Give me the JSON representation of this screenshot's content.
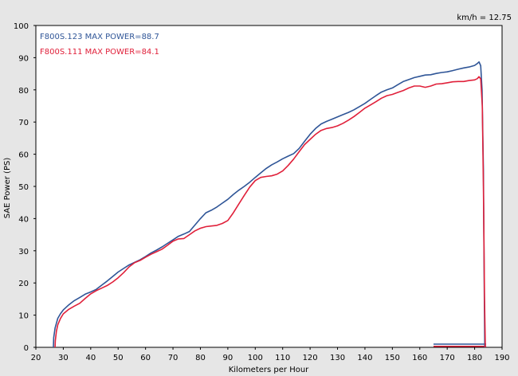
{
  "chart_data": {
    "type": "line",
    "title": "",
    "xlabel": "Kilometers per Hour",
    "ylabel": "SAE Power (PS)",
    "xlim": [
      20,
      190
    ],
    "ylim": [
      0,
      100
    ],
    "x_ticks": [
      20,
      30,
      40,
      50,
      60,
      70,
      80,
      90,
      100,
      110,
      120,
      130,
      140,
      150,
      160,
      170,
      180,
      190
    ],
    "y_ticks": [
      0,
      10,
      20,
      30,
      40,
      50,
      60,
      70,
      80,
      90,
      100
    ],
    "grid": false,
    "legend_position": "top-left",
    "annotation": "km/h = 12.75",
    "series": [
      {
        "name": "F800S.123",
        "label": "F800S.123  MAX POWER=88.7",
        "color": "#2f5597",
        "points": [
          [
            26.4,
            0
          ],
          [
            26.5,
            3
          ],
          [
            27,
            6
          ],
          [
            28,
            9
          ],
          [
            29,
            10.5
          ],
          [
            30,
            11.6
          ],
          [
            32,
            13.2
          ],
          [
            34,
            14.5
          ],
          [
            36,
            15.5
          ],
          [
            38,
            16.5
          ],
          [
            40,
            17.2
          ],
          [
            42,
            18
          ],
          [
            44,
            19.3
          ],
          [
            46,
            20.6
          ],
          [
            48,
            22
          ],
          [
            50,
            23.4
          ],
          [
            52,
            24.5
          ],
          [
            54,
            25.6
          ],
          [
            56,
            26.4
          ],
          [
            58,
            27.2
          ],
          [
            60,
            28.2
          ],
          [
            62,
            29.3
          ],
          [
            64,
            30.2
          ],
          [
            66,
            31.2
          ],
          [
            68,
            32.3
          ],
          [
            70,
            33.4
          ],
          [
            72,
            34.5
          ],
          [
            74,
            35.2
          ],
          [
            76,
            36
          ],
          [
            78,
            38
          ],
          [
            80,
            40
          ],
          [
            82,
            41.8
          ],
          [
            84,
            42.6
          ],
          [
            86,
            43.6
          ],
          [
            88,
            44.8
          ],
          [
            90,
            46
          ],
          [
            92,
            47.5
          ],
          [
            94,
            48.8
          ],
          [
            96,
            50
          ],
          [
            98,
            51.3
          ],
          [
            100,
            52.8
          ],
          [
            102,
            54.2
          ],
          [
            104,
            55.6
          ],
          [
            106,
            56.7
          ],
          [
            108,
            57.6
          ],
          [
            110,
            58.6
          ],
          [
            112,
            59.4
          ],
          [
            114,
            60.2
          ],
          [
            116,
            61.8
          ],
          [
            118,
            64
          ],
          [
            120,
            66.2
          ],
          [
            122,
            68
          ],
          [
            124,
            69.4
          ],
          [
            126,
            70.2
          ],
          [
            128,
            70.9
          ],
          [
            130,
            71.6
          ],
          [
            132,
            72.3
          ],
          [
            134,
            73
          ],
          [
            136,
            73.8
          ],
          [
            138,
            74.8
          ],
          [
            140,
            75.8
          ],
          [
            142,
            77
          ],
          [
            144,
            78.2
          ],
          [
            146,
            79.3
          ],
          [
            148,
            80
          ],
          [
            150,
            80.6
          ],
          [
            152,
            81.6
          ],
          [
            154,
            82.6
          ],
          [
            156,
            83.2
          ],
          [
            158,
            83.8
          ],
          [
            160,
            84.2
          ],
          [
            162,
            84.6
          ],
          [
            164,
            84.7
          ],
          [
            166,
            85.1
          ],
          [
            168,
            85.4
          ],
          [
            170,
            85.6
          ],
          [
            172,
            86
          ],
          [
            174,
            86.4
          ],
          [
            176,
            86.8
          ],
          [
            178,
            87.1
          ],
          [
            180,
            87.6
          ],
          [
            181,
            88.2
          ],
          [
            181.6,
            88.7
          ],
          [
            182.2,
            87.5
          ],
          [
            182.7,
            80
          ],
          [
            183.2,
            55
          ],
          [
            183.5,
            20
          ],
          [
            183.7,
            0
          ]
        ]
      },
      {
        "name": "F800S.111",
        "label": "F800S.111  MAX POWER=84.1",
        "color": "#e0203a",
        "points": [
          [
            27,
            0
          ],
          [
            27.1,
            2
          ],
          [
            27.5,
            5
          ],
          [
            28,
            7
          ],
          [
            29,
            9
          ],
          [
            30,
            10.4
          ],
          [
            32,
            11.8
          ],
          [
            34,
            12.8
          ],
          [
            36,
            13.7
          ],
          [
            38,
            15.2
          ],
          [
            40,
            16.6
          ],
          [
            42,
            17.6
          ],
          [
            44,
            18.4
          ],
          [
            46,
            19.2
          ],
          [
            48,
            20.3
          ],
          [
            50,
            21.6
          ],
          [
            52,
            23.2
          ],
          [
            54,
            25
          ],
          [
            56,
            26.3
          ],
          [
            58,
            27
          ],
          [
            60,
            28
          ],
          [
            62,
            28.9
          ],
          [
            64,
            29.7
          ],
          [
            66,
            30.5
          ],
          [
            68,
            31.7
          ],
          [
            70,
            33
          ],
          [
            72,
            33.7
          ],
          [
            74,
            33.8
          ],
          [
            76,
            35
          ],
          [
            78,
            36.2
          ],
          [
            80,
            37
          ],
          [
            82,
            37.5
          ],
          [
            84,
            37.7
          ],
          [
            86,
            37.9
          ],
          [
            88,
            38.5
          ],
          [
            90,
            39.4
          ],
          [
            92,
            41.8
          ],
          [
            94,
            44.5
          ],
          [
            96,
            47.2
          ],
          [
            98,
            49.8
          ],
          [
            100,
            51.8
          ],
          [
            102,
            52.8
          ],
          [
            104,
            53.1
          ],
          [
            106,
            53.3
          ],
          [
            108,
            53.8
          ],
          [
            110,
            54.8
          ],
          [
            112,
            56.5
          ],
          [
            114,
            58.5
          ],
          [
            116,
            60.8
          ],
          [
            118,
            63
          ],
          [
            120,
            64.6
          ],
          [
            122,
            66.2
          ],
          [
            124,
            67.4
          ],
          [
            126,
            68
          ],
          [
            128,
            68.3
          ],
          [
            130,
            68.8
          ],
          [
            132,
            69.6
          ],
          [
            134,
            70.6
          ],
          [
            136,
            71.7
          ],
          [
            138,
            73
          ],
          [
            140,
            74.3
          ],
          [
            142,
            75.3
          ],
          [
            144,
            76.3
          ],
          [
            146,
            77.4
          ],
          [
            148,
            78.2
          ],
          [
            150,
            78.6
          ],
          [
            152,
            79.2
          ],
          [
            154,
            79.8
          ],
          [
            156,
            80.6
          ],
          [
            158,
            81.2
          ],
          [
            160,
            81.2
          ],
          [
            162,
            80.8
          ],
          [
            164,
            81.2
          ],
          [
            166,
            81.8
          ],
          [
            168,
            81.9
          ],
          [
            170,
            82.2
          ],
          [
            172,
            82.5
          ],
          [
            174,
            82.6
          ],
          [
            176,
            82.6
          ],
          [
            178,
            82.9
          ],
          [
            180,
            83.1
          ],
          [
            181,
            83.5
          ],
          [
            181.6,
            84.1
          ],
          [
            182.2,
            83.4
          ],
          [
            182.8,
            75
          ],
          [
            183.2,
            50
          ],
          [
            183.6,
            15
          ],
          [
            183.9,
            0
          ]
        ]
      }
    ],
    "baseline_segments": [
      {
        "color": "#2f5597",
        "x": [
          165,
          184.2
        ],
        "y": 1
      },
      {
        "color": "#e0203a",
        "x": [
          165,
          184.2
        ],
        "y": 0.3
      }
    ]
  }
}
